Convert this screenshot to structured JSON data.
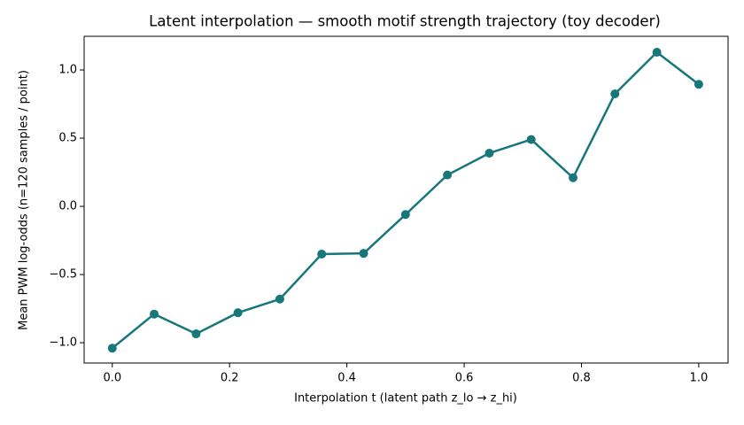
{
  "chart_data": {
    "type": "line",
    "title": "Latent interpolation — smooth motif strength trajectory (toy decoder)",
    "x_label": "Interpolation t (latent path z_lo → z_hi)",
    "y_label": "Mean PWM log-odds (n=120 samples / point)",
    "x": [
      0,
      0.0714,
      0.1429,
      0.2143,
      0.2857,
      0.3571,
      0.4286,
      0.5,
      0.5714,
      0.6429,
      0.7143,
      0.7857,
      0.8571,
      0.9286,
      1.0
    ],
    "series": [
      {
        "color": "#17777a",
        "values": [
          -1.04,
          -0.79,
          -0.935,
          -0.78,
          -0.68,
          -0.35,
          -0.345,
          -0.06,
          0.23,
          0.39,
          0.49,
          0.21,
          0.825,
          1.13,
          0.895
        ]
      }
    ],
    "xlim": [
      -0.048,
      1.05
    ],
    "ylim": [
      -1.149,
      1.247
    ],
    "xticks": [
      {
        "value": 0,
        "label": "0.0"
      },
      {
        "value": 0.2,
        "label": "0.2"
      },
      {
        "value": 0.4,
        "label": "0.4"
      },
      {
        "value": 0.6,
        "label": "0.6"
      },
      {
        "value": 0.8,
        "label": "0.8"
      },
      {
        "value": 1,
        "label": "1.0"
      }
    ],
    "yticks": [
      {
        "value": -1,
        "label": "−1.0"
      },
      {
        "value": -0.5,
        "label": "−0.5"
      },
      {
        "value": 0,
        "label": "0.0"
      },
      {
        "value": 0.5,
        "label": "0.5"
      },
      {
        "value": 1,
        "label": "1.0"
      }
    ],
    "grid": false
  }
}
